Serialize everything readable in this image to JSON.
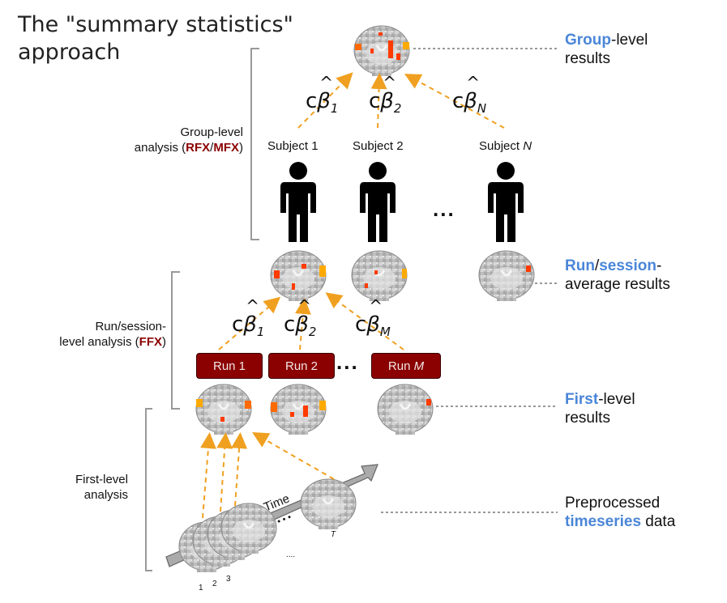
{
  "title": "The \"summary statistics\" approach",
  "title_line1": "The \"summary statistics\"",
  "title_line2": "approach",
  "left_labels": {
    "group": {
      "line1": "Group-level",
      "line2_prefix": "analysis (",
      "rfx": "RFX",
      "slash": "/",
      "mfx": "MFX",
      "close": ")"
    },
    "run": {
      "line1": "Run/session-",
      "line2_prefix": "level analysis (",
      "ffx": "FFX",
      "close": ")"
    },
    "first": {
      "line1": "First-level",
      "line2": "analysis"
    }
  },
  "right_labels": {
    "group": {
      "blue": "Group",
      "rest": "-level",
      "line2": "results"
    },
    "run": {
      "blue1": "Run",
      "slash": "/",
      "blue2": "session",
      "dash": "-",
      "line2": "average results"
    },
    "first": {
      "blue": "First",
      "rest": "-level",
      "line2": "results"
    },
    "timeseries": {
      "line1": "Preprocessed",
      "blue": "timeseries",
      "rest": " data"
    }
  },
  "subjects": [
    {
      "label": "Subject 1"
    },
    {
      "label": "Subject 2"
    },
    {
      "label": "Subject ",
      "italic": "N"
    }
  ],
  "subject_dots": "...",
  "runs": [
    {
      "label": "Run 1"
    },
    {
      "label": "Run 2"
    },
    {
      "label": "Run ",
      "italic": "M"
    }
  ],
  "run_dots": "...",
  "group_betas": [
    {
      "c": "c",
      "beta": "β",
      "hat": "^",
      "sub": "1"
    },
    {
      "c": "c",
      "beta": "β",
      "hat": "^",
      "sub": "2"
    },
    {
      "c": "c",
      "beta": "β",
      "hat": "^",
      "sub": "N"
    }
  ],
  "run_betas": [
    {
      "c": "c",
      "beta": "β",
      "hat": "^",
      "sub": "1"
    },
    {
      "c": "c",
      "beta": "β",
      "hat": "^",
      "sub": "2"
    },
    {
      "c": "c",
      "beta": "β",
      "hat": "^",
      "sub": "M"
    }
  ],
  "timeseries": {
    "time_label": "Time",
    "dots": "• • •",
    "t_label": "T",
    "small_dots": "....",
    "frame_numbers": [
      "1",
      "2",
      "3"
    ]
  },
  "colors": {
    "arrow": "#f0a020",
    "dark_red": "#8b0000",
    "blue": "#4a86d8",
    "activation": "#ff3b00"
  },
  "icons": [
    "person-icon",
    "brain-slice-icon",
    "time-arrow-icon"
  ]
}
